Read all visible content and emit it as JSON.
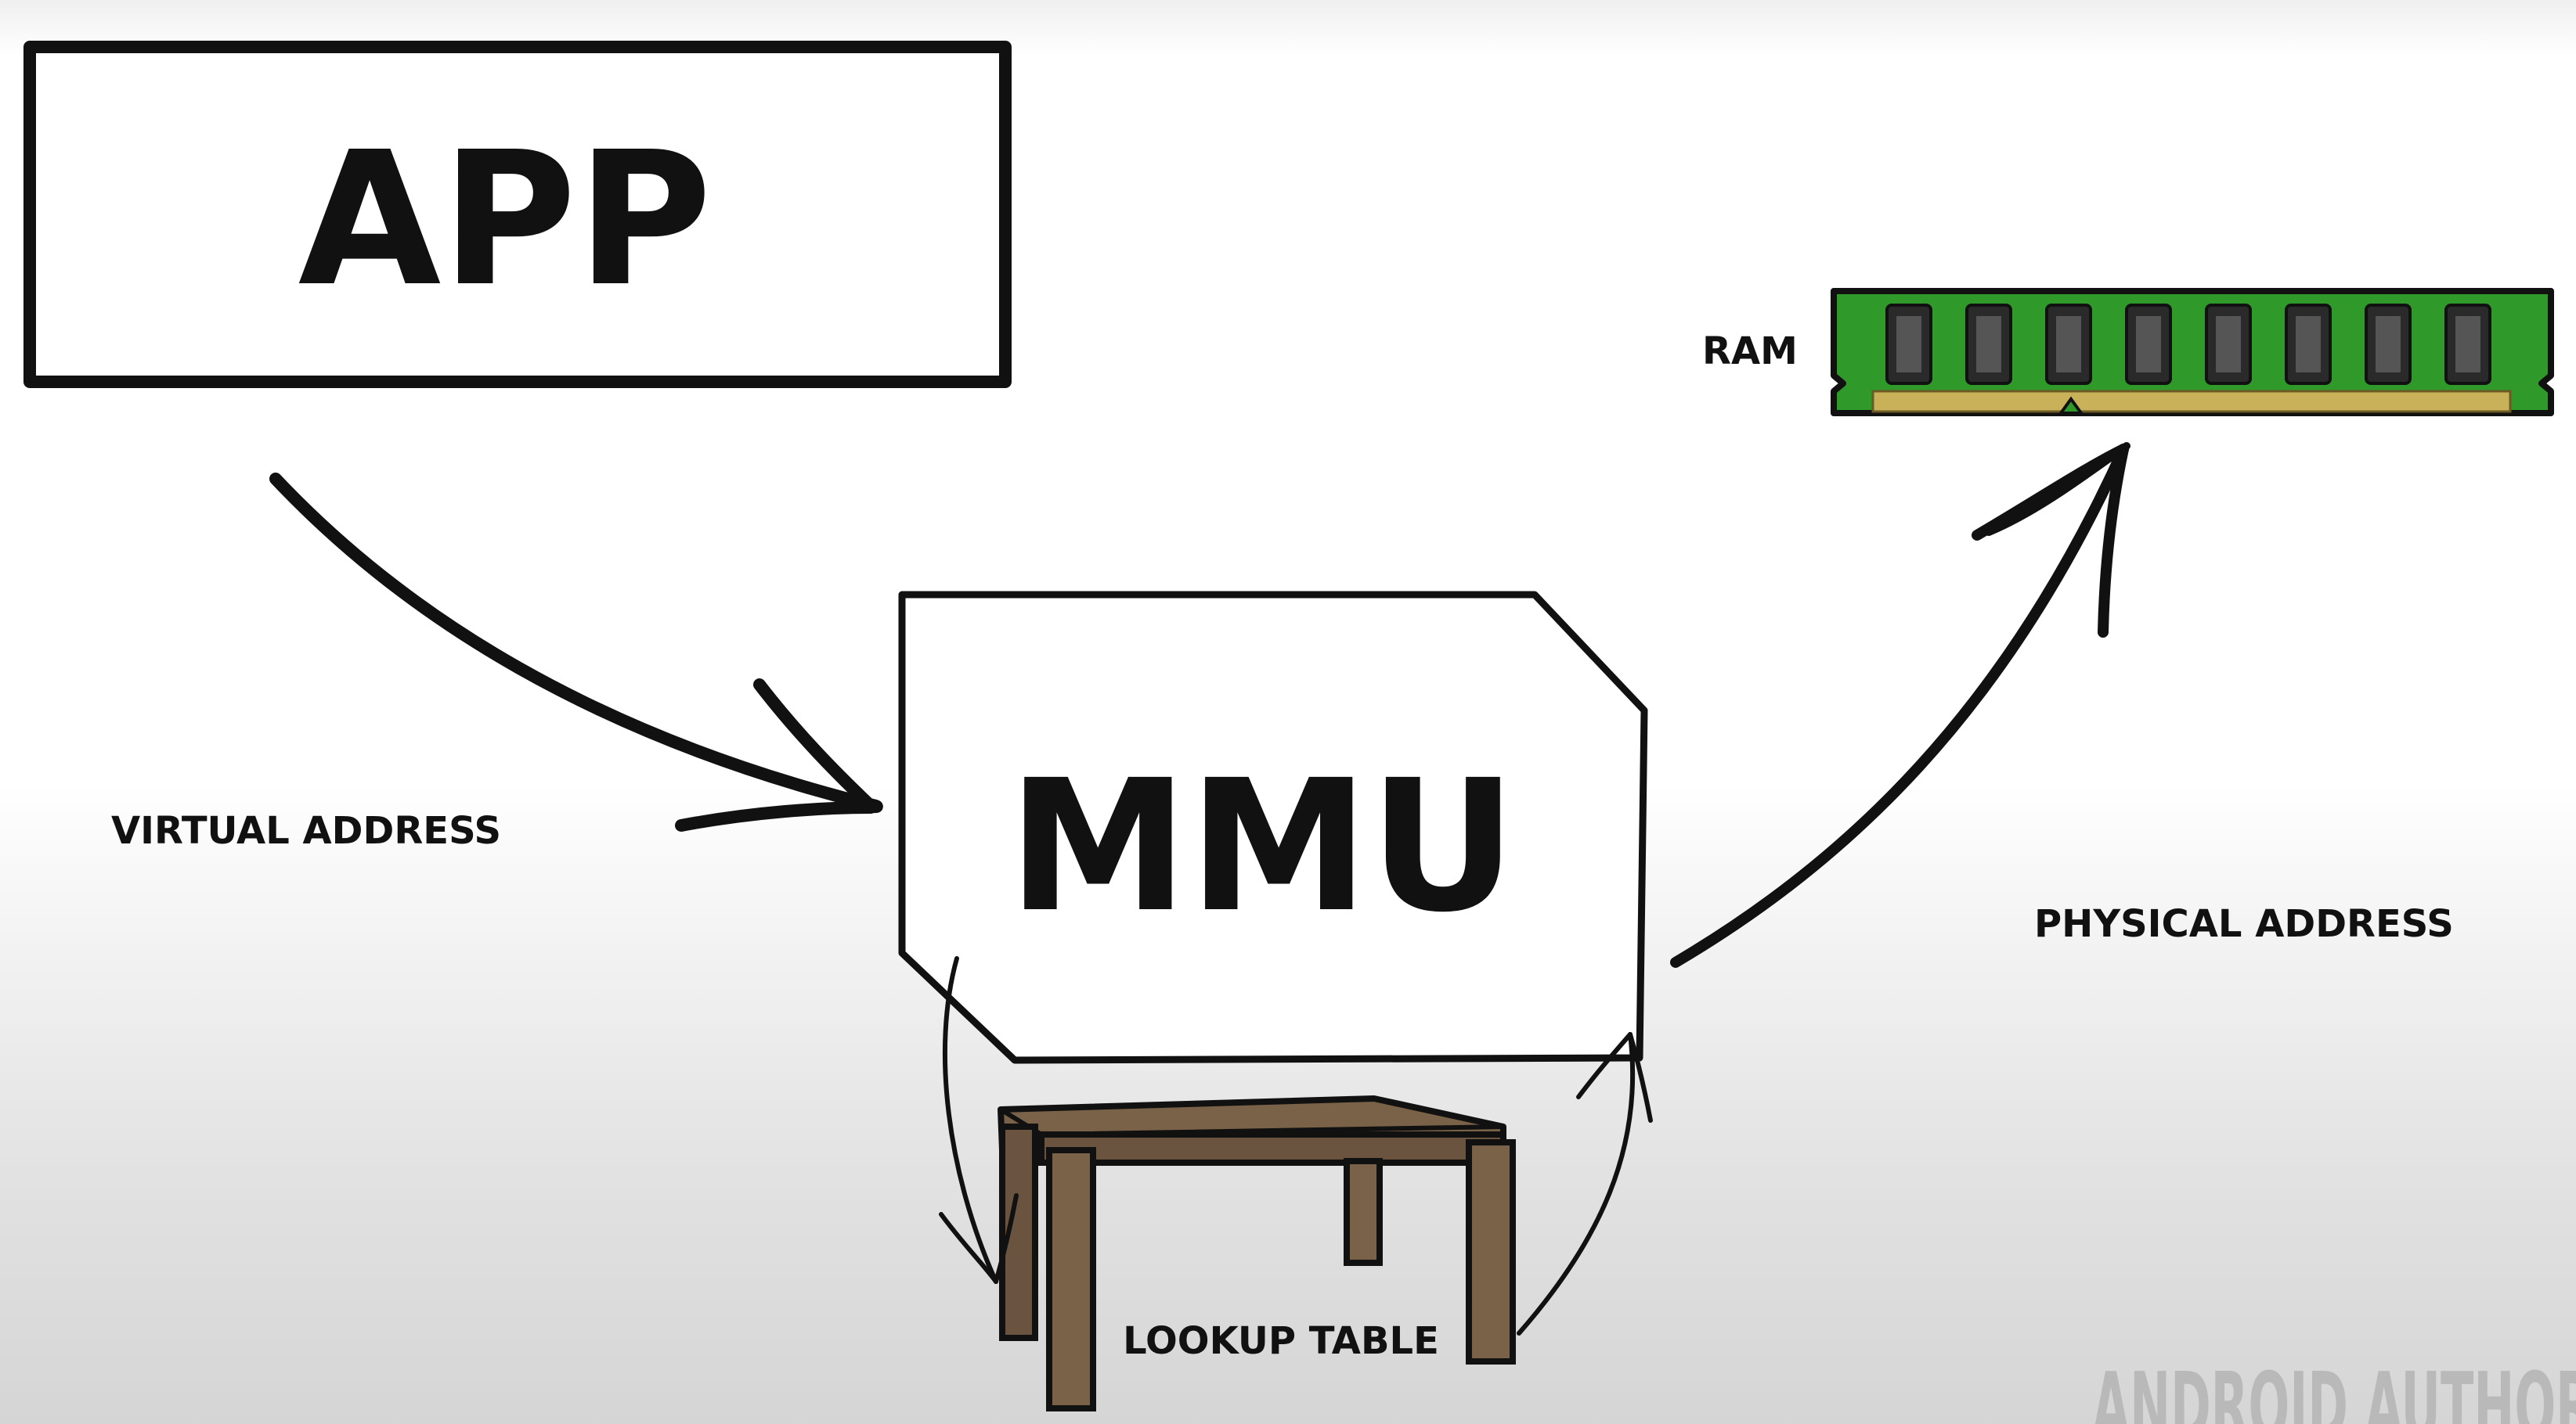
{
  "labels": {
    "app": "APP",
    "mmu": "MMU",
    "ram": "RAM",
    "virtual_address": "VIRTUAL ADDRESS",
    "physical_address": "PHYSICAL ADDRESS",
    "lookup_table": "LOOKUP TABLE"
  },
  "watermark": "ANDROID AUTHOR",
  "colors": {
    "ink": "#111111",
    "ram_board": "#2f9a2a",
    "ram_chip": "#3a3a3a",
    "ram_contacts": "#c9b15a",
    "table_wood": "#7a6248"
  }
}
